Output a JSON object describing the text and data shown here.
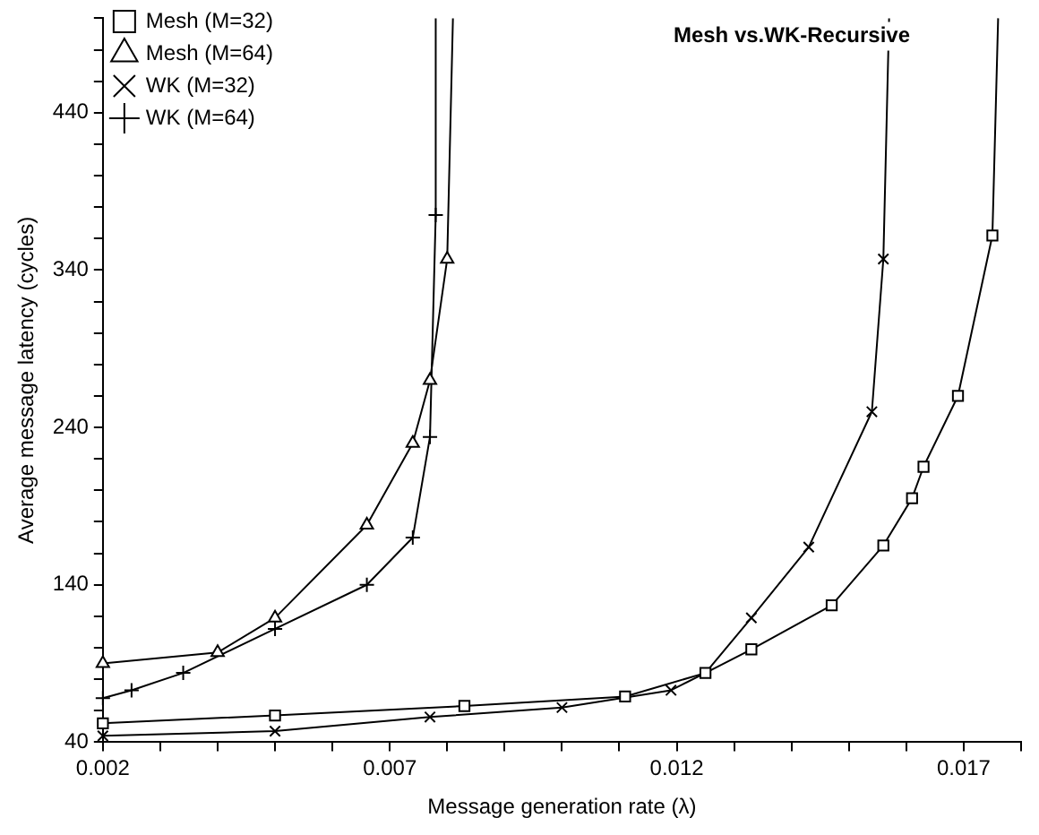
{
  "chart_data": {
    "type": "line",
    "title": "Mesh vs.WK-Recursive",
    "xlabel": "Message generation rate (λ)",
    "ylabel": "Average message latency (cycles)",
    "xlim": [
      0.002,
      0.018
    ],
    "xticks": [
      0.002,
      {
        "value": 0.003,
        "label": null
      },
      {
        "value": 0.004,
        "label": null
      },
      {
        "value": 0.005,
        "label": null
      },
      {
        "value": 0.006,
        "label": null
      },
      0.007,
      {
        "value": 0.008,
        "label": null
      },
      {
        "value": 0.009,
        "label": null
      },
      {
        "value": 0.01,
        "label": null
      },
      {
        "value": 0.011,
        "label": null
      },
      0.012,
      {
        "value": 0.013,
        "label": null
      },
      {
        "value": 0.014,
        "label": null
      },
      {
        "value": 0.015,
        "label": null
      },
      {
        "value": 0.016,
        "label": null
      },
      0.017,
      {
        "value": 0.018,
        "label": null
      }
    ],
    "ylim": [
      40,
      500
    ],
    "yticks": [
      40,
      {
        "value": 60,
        "label": null
      },
      {
        "value": 80,
        "label": null
      },
      {
        "value": 100,
        "label": null
      },
      {
        "value": 120,
        "label": null
      },
      140,
      {
        "value": 160,
        "label": null
      },
      {
        "value": 180,
        "label": null
      },
      {
        "value": 200,
        "label": null
      },
      {
        "value": 220,
        "label": null
      },
      240,
      {
        "value": 260,
        "label": null
      },
      {
        "value": 280,
        "label": null
      },
      {
        "value": 300,
        "label": null
      },
      {
        "value": 320,
        "label": null
      },
      340,
      {
        "value": 360,
        "label": null
      },
      {
        "value": 380,
        "label": null
      },
      {
        "value": 400,
        "label": null
      },
      {
        "value": 420,
        "label": null
      },
      440,
      {
        "value": 460,
        "label": null
      },
      {
        "value": 480,
        "label": null
      },
      {
        "value": 500,
        "label": null
      }
    ],
    "grid": false,
    "legend": "top left",
    "line_style": "solid",
    "series": [
      {
        "name": "Mesh (M=32)",
        "color": "#000000",
        "marker": "square",
        "x": [
          0.002,
          0.005,
          0.0083,
          0.0111,
          0.0125,
          0.0133,
          0.0147,
          0.0156,
          0.0161,
          0.0163,
          0.0169,
          0.0175,
          0.0176
        ],
        "values": [
          52,
          57,
          63,
          69,
          84,
          99,
          127,
          165,
          195,
          215,
          260,
          362,
          500
        ]
      },
      {
        "name": "Mesh (M=64)",
        "color": "#000000",
        "marker": "triangle",
        "x": [
          0.002,
          0.004,
          0.005,
          0.0066,
          0.0074,
          0.0077,
          0.008,
          0.0081
        ],
        "values": [
          90,
          97,
          119,
          178,
          230,
          270,
          347,
          500
        ]
      },
      {
        "name": "WK (M=32)",
        "color": "#000000",
        "marker": "cross",
        "x": [
          0.002,
          0.005,
          0.0077,
          0.01,
          0.0119,
          0.0125,
          0.0133,
          0.0143,
          0.0154,
          0.0156,
          0.0157
        ],
        "values": [
          44,
          47,
          56,
          62,
          73,
          84,
          119,
          164,
          250,
          347,
          500
        ]
      },
      {
        "name": "WK (M=64)",
        "color": "#000000",
        "marker": "plus",
        "x": [
          0.002,
          0.0025,
          0.0034,
          0.005,
          0.0066,
          0.0074,
          0.0077,
          0.0078,
          0.0078
        ],
        "values": [
          68,
          73,
          84,
          112,
          140,
          170,
          234,
          375,
          500
        ]
      }
    ]
  }
}
